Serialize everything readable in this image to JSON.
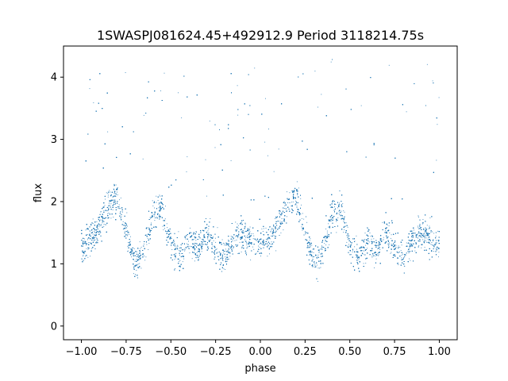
{
  "chart_data": {
    "type": "scatter",
    "title": "1SWASPJ081624.45+492912.9 Period 3118214.75s",
    "xlabel": "phase",
    "ylabel": "flux",
    "xlim": [
      -1.1,
      1.1
    ],
    "ylim": [
      -0.22,
      4.5
    ],
    "x_ticks": [
      -1.0,
      -0.75,
      -0.5,
      -0.25,
      0.0,
      0.25,
      0.5,
      0.75,
      1.0
    ],
    "x_tick_labels": [
      "−1.00",
      "−0.75",
      "−0.50",
      "−0.25",
      "0.00",
      "0.25",
      "0.50",
      "0.75",
      "1.00"
    ],
    "y_ticks": [
      0,
      1,
      2,
      3,
      4
    ],
    "y_tick_labels": [
      "0",
      "1",
      "2",
      "3",
      "4"
    ],
    "grid": false,
    "legend": "none",
    "marker_color": "#1f77b4",
    "series": [
      {
        "x": [
          -1.0,
          -0.95,
          -0.9,
          -0.85,
          -0.8,
          -0.75,
          -0.7,
          -0.65,
          -0.6,
          -0.55,
          -0.5,
          -0.45,
          -0.4,
          -0.35,
          -0.3,
          -0.25,
          -0.2,
          -0.15,
          -0.1,
          -0.05,
          0.0,
          0.05,
          0.1,
          0.15,
          0.2,
          0.25,
          0.3,
          0.35,
          0.4,
          0.45,
          0.5,
          0.55,
          0.6,
          0.65,
          0.7,
          0.75,
          0.8,
          0.85,
          0.9,
          0.95,
          1.0
        ],
        "y": [
          1.3,
          1.4,
          1.6,
          1.9,
          2.1,
          1.5,
          1.0,
          1.2,
          1.8,
          1.9,
          1.3,
          1.1,
          1.4,
          1.2,
          1.5,
          1.3,
          1.1,
          1.4,
          1.5,
          1.4,
          1.3,
          1.4,
          1.6,
          1.9,
          2.1,
          1.5,
          1.0,
          1.2,
          1.8,
          1.9,
          1.3,
          1.1,
          1.4,
          1.2,
          1.5,
          1.3,
          1.1,
          1.4,
          1.5,
          1.4,
          1.3
        ]
      }
    ]
  }
}
